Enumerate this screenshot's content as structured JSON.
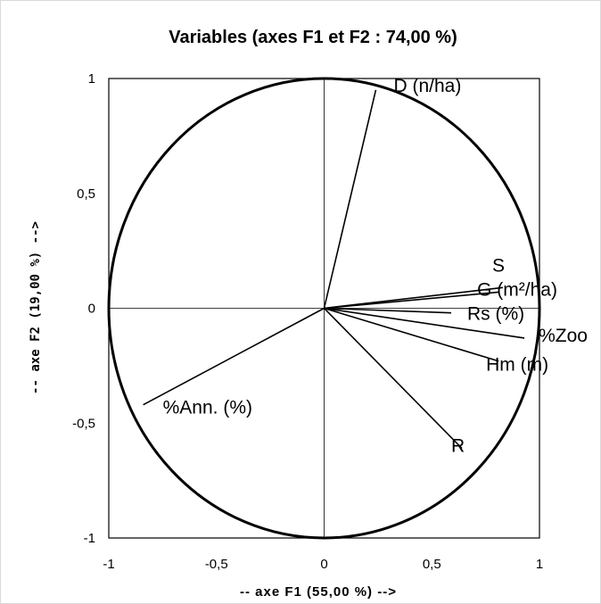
{
  "chart_data": {
    "type": "scatter",
    "title": "Variables (axes F1 et F2 : 74,00 %)",
    "xlabel": "-- axe F1 (55,00 %) -->",
    "ylabel": "-- axe F2 (19,00 %) -->",
    "xlim": [
      -1,
      1
    ],
    "ylim": [
      -1,
      1
    ],
    "x_ticks": [
      "-1",
      "-0,5",
      "0",
      "0,5",
      "1"
    ],
    "y_ticks": [
      "1",
      "0,5",
      "0",
      "-0,5",
      "-1"
    ],
    "correlation_circle": true,
    "grid": false,
    "variables": [
      {
        "label": "D (n/ha)",
        "x": 0.24,
        "y": 0.95
      },
      {
        "label": "S",
        "x": 0.83,
        "y": 0.09
      },
      {
        "label": "G (m²/ha)",
        "x": 0.81,
        "y": 0.07
      },
      {
        "label": "Rs (%)",
        "x": 0.59,
        "y": -0.02
      },
      {
        "label": "%Zoo",
        "x": 0.93,
        "y": -0.13
      },
      {
        "label": "Hm (m)",
        "x": 0.81,
        "y": -0.23
      },
      {
        "label": "R",
        "x": 0.64,
        "y": -0.61
      },
      {
        "label": "%Ann. (%)",
        "x": -0.84,
        "y": -0.42
      }
    ]
  }
}
